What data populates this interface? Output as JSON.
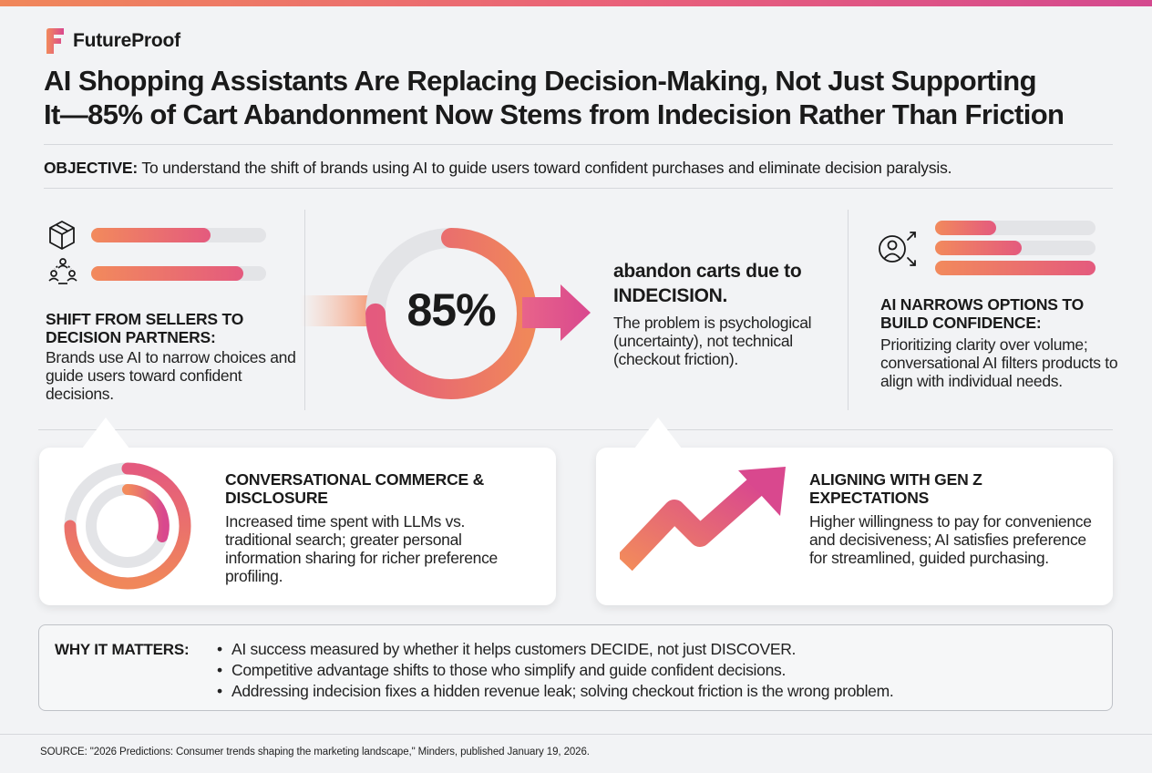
{
  "brand": {
    "name": "FutureProof",
    "accent": "#e9607a",
    "accent_start": "#f28a5c",
    "accent_end": "#d4498f"
  },
  "title": {
    "line1": "AI Shopping Assistants Are Replacing Decision-Making, Not Just Supporting",
    "line2": "It—85% of Cart Abandonment Now Stems from Indecision Rather Than Friction"
  },
  "objective": {
    "label": "OBJECTIVE:",
    "text": "To understand the shift of brands using AI to guide users toward confident purchases and eliminate decision paralysis."
  },
  "left_panel": {
    "icons": [
      "cube-icon",
      "people-network-icon"
    ],
    "bars": [
      0.68,
      0.87
    ],
    "heading": "SHIFT FROM SELLERS TO DECISION PARTNERS:",
    "body": "Brands use AI to narrow choices and guide users toward confident decisions."
  },
  "center_stat": {
    "value": "85%",
    "ring_fraction": 0.75,
    "heading": "abandon carts due to INDECISION.",
    "body": "The problem is psychological (uncertainty), not technical (checkout friction)."
  },
  "right_panel": {
    "icon": "user-arrows-icon",
    "bars": [
      0.38,
      0.54,
      1.0
    ],
    "heading": "AI NARROWS OPTIONS TO BUILD CONFIDENCE:",
    "body": "Prioritizing clarity over volume; conversational AI filters products to align with individual needs."
  },
  "cards": [
    {
      "icon": "donut-ring-icon",
      "heading": "CONVERSATIONAL COMMERCE & DISCLOSURE",
      "body": "Increased time spent with LLMs vs. traditional search; greater personal information sharing for richer preference profiling."
    },
    {
      "icon": "trend-up-arrow-icon",
      "heading": "ALIGNING WITH GEN Z EXPECTATIONS",
      "body": "Higher willingness to pay for convenience and decisiveness; AI satisfies preference for streamlined, guided purchasing."
    }
  ],
  "why": {
    "label": "WHY IT MATTERS:",
    "items": [
      "AI success measured by whether it helps customers DECIDE, not just DISCOVER.",
      "Competitive advantage shifts to those who simplify and guide confident decisions.",
      "Addressing indecision fixes a hidden revenue leak; solving checkout friction is the wrong problem."
    ]
  },
  "source": "SOURCE: \"2026 Predictions: Consumer trends shaping the marketing landscape,\" Minders, published January 19, 2026."
}
